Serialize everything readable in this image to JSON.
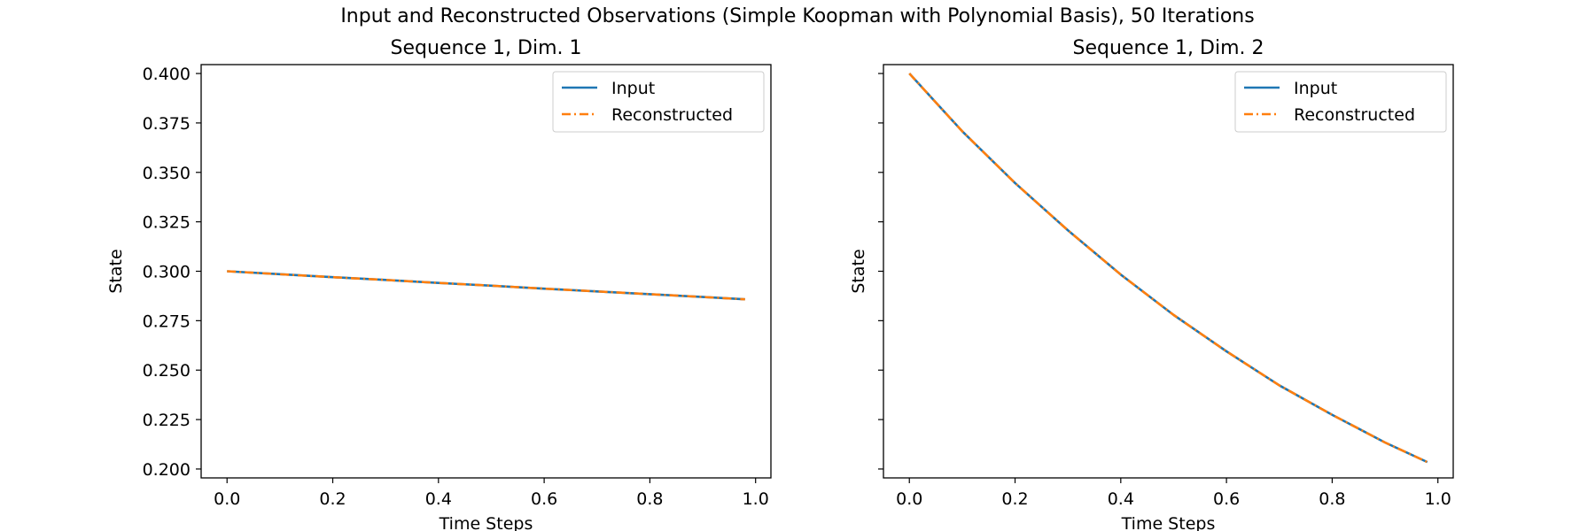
{
  "figure": {
    "suptitle": "Input and Reconstructed Observations (Simple Koopman with Polynomial Basis), 50 Iterations"
  },
  "colors": {
    "input": "#1f77b4",
    "reconstructed": "#ff7f0e"
  },
  "chart_data": [
    {
      "type": "line",
      "title": "Sequence 1, Dim. 1",
      "xlabel": "Time Steps",
      "ylabel": "State",
      "xlim": [
        -0.049,
        1.029
      ],
      "ylim": [
        0.1955,
        0.4045
      ],
      "xticks": [
        0.0,
        0.2,
        0.4,
        0.6,
        0.8,
        1.0
      ],
      "xtick_labels": [
        "0.0",
        "0.2",
        "0.4",
        "0.6",
        "0.8",
        "1.0"
      ],
      "yticks": [
        0.2,
        0.225,
        0.25,
        0.275,
        0.3,
        0.325,
        0.35,
        0.375,
        0.4
      ],
      "ytick_labels": [
        "0.200",
        "0.225",
        "0.250",
        "0.275",
        "0.300",
        "0.325",
        "0.350",
        "0.375",
        "0.400"
      ],
      "show_ytick_labels": true,
      "grid": false,
      "legend": "top-right",
      "x": [
        0.0,
        0.1,
        0.2,
        0.3,
        0.4,
        0.5,
        0.6,
        0.7,
        0.8,
        0.9,
        0.98
      ],
      "series": [
        {
          "name": "Input",
          "style": "solid",
          "values": [
            0.3,
            0.2985,
            0.297,
            0.2956,
            0.2941,
            0.2927,
            0.2912,
            0.2898,
            0.2884,
            0.287,
            0.2858
          ]
        },
        {
          "name": "Reconstructed",
          "style": "dashdot",
          "values": [
            0.3,
            0.2985,
            0.297,
            0.2956,
            0.2941,
            0.2927,
            0.2912,
            0.2898,
            0.2884,
            0.287,
            0.2858
          ]
        }
      ]
    },
    {
      "type": "line",
      "title": "Sequence 1, Dim. 2",
      "xlabel": "Time Steps",
      "ylabel": "State",
      "xlim": [
        -0.049,
        1.029
      ],
      "ylim": [
        0.1955,
        0.4045
      ],
      "xticks": [
        0.0,
        0.2,
        0.4,
        0.6,
        0.8,
        1.0
      ],
      "xtick_labels": [
        "0.0",
        "0.2",
        "0.4",
        "0.6",
        "0.8",
        "1.0"
      ],
      "yticks": [
        0.2,
        0.225,
        0.25,
        0.275,
        0.3,
        0.325,
        0.35,
        0.375,
        0.4
      ],
      "ytick_labels": [],
      "show_ytick_labels": false,
      "grid": false,
      "legend": "top-right",
      "x": [
        0.0,
        0.1,
        0.2,
        0.3,
        0.4,
        0.5,
        0.6,
        0.7,
        0.8,
        0.9,
        0.98
      ],
      "series": [
        {
          "name": "Input",
          "style": "solid",
          "values": [
            0.4,
            0.3708,
            0.3446,
            0.3207,
            0.2983,
            0.2779,
            0.2595,
            0.2423,
            0.2274,
            0.2134,
            0.2035
          ]
        },
        {
          "name": "Reconstructed",
          "style": "dashdot",
          "values": [
            0.4,
            0.3708,
            0.3446,
            0.3207,
            0.2983,
            0.2779,
            0.2595,
            0.2423,
            0.2274,
            0.2134,
            0.2035
          ]
        }
      ]
    }
  ]
}
